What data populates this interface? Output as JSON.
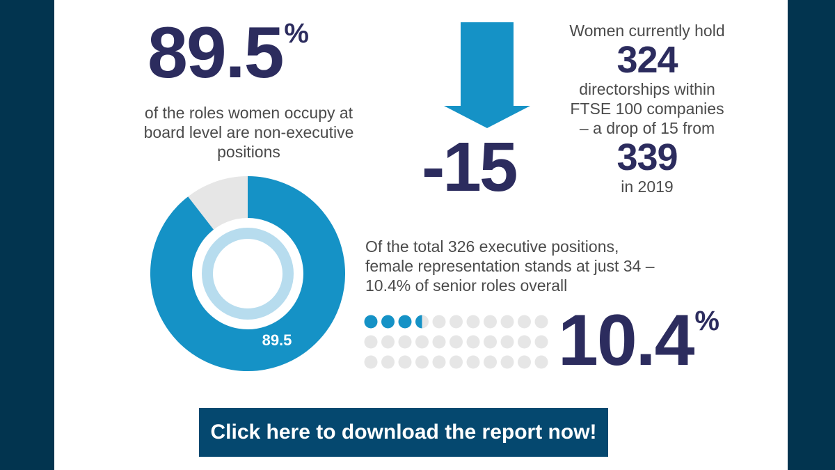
{
  "stat_non_exec": {
    "value": "89.5",
    "unit": "%",
    "description": "of the roles women occupy at board level are non-executive positions"
  },
  "directorships": {
    "change": "-15",
    "line1": "Women currently hold",
    "current": "324",
    "line2": "directorships within",
    "line3": "FTSE 100 companies",
    "line4": "– a drop of 15 from",
    "previous": "339",
    "line5": "in 2019"
  },
  "donut_chart": {
    "label": "89.5",
    "percent": 89.5,
    "colors": {
      "main": "#1592c6",
      "remainder": "#e6e6e6",
      "inner_ring": "#b7dcee"
    }
  },
  "executive": {
    "text": "Of the total 326 executive positions, female representation stands at just 34 – 10.4% of senior roles overall",
    "value": "10.4",
    "unit": "%",
    "dots_filled": 3.5,
    "dots_total": 33
  },
  "cta": {
    "label": "Click here to download the report now!"
  },
  "colors": {
    "background": "#02344f",
    "navy_text": "#2c2c5e",
    "accent": "#1592c6",
    "button": "#05486f"
  }
}
